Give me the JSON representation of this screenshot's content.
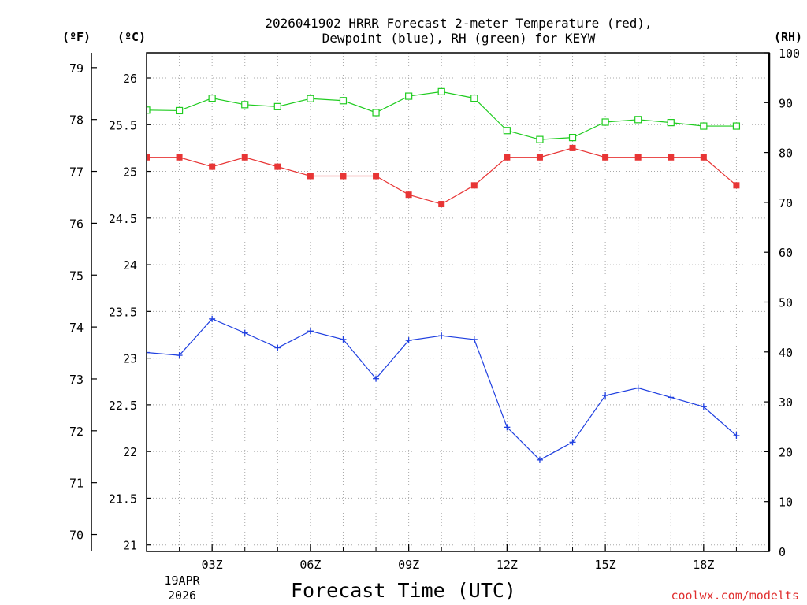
{
  "chart_data": {
    "type": "line",
    "title_line1": "2026041902 HRRR Forecast 2-meter Temperature (red),",
    "title_line2": "Dewpoint (blue), RH (green) for KEYW",
    "xlabel": "Forecast Time (UTC)",
    "credit": "coolwx.com/modelts",
    "unit_f": "(ºF)",
    "unit_c": "(ºC)",
    "unit_rh": "(RH)",
    "x_hours": [
      1,
      2,
      3,
      4,
      5,
      6,
      7,
      8,
      9,
      10,
      11,
      12,
      13,
      14,
      15,
      16,
      17,
      18,
      19,
      20
    ],
    "x_range": [
      1,
      20
    ],
    "x_ticks": [
      {
        "hour": 3,
        "label": "03Z"
      },
      {
        "hour": 6,
        "label": "06Z"
      },
      {
        "hour": 9,
        "label": "09Z"
      },
      {
        "hour": 12,
        "label": "12Z"
      },
      {
        "hour": 15,
        "label": "15Z"
      },
      {
        "hour": 18,
        "label": "18Z"
      }
    ],
    "date_label_1": "19APR",
    "date_label_2": "2026",
    "c_axis": {
      "range": [
        20.93,
        26.27
      ],
      "ticks": [
        "21",
        "21.5",
        "22",
        "22.5",
        "23",
        "23.5",
        "24",
        "24.5",
        "25",
        "25.5",
        "26"
      ]
    },
    "f_axis": {
      "ticks": [
        "70",
        "71",
        "72",
        "73",
        "74",
        "75",
        "76",
        "77",
        "78",
        "79"
      ]
    },
    "rh_axis": {
      "range": [
        0,
        100
      ],
      "ticks": [
        "0",
        "10",
        "20",
        "30",
        "40",
        "50",
        "60",
        "70",
        "80",
        "90",
        "100"
      ]
    },
    "series": [
      {
        "name": "Temperature",
        "axis": "C",
        "color": "#e83535",
        "marker": "filled-square",
        "values": [
          25.15,
          25.15,
          25.05,
          25.15,
          25.05,
          24.95,
          24.95,
          24.95,
          24.75,
          24.65,
          24.85,
          25.15,
          25.15,
          25.25,
          25.15,
          25.15,
          25.15,
          25.15,
          24.85
        ]
      },
      {
        "name": "Dewpoint",
        "axis": "C",
        "color": "#2040e0",
        "marker": "plus",
        "values": [
          23.06,
          23.03,
          23.42,
          23.27,
          23.11,
          23.29,
          23.2,
          22.78,
          23.19,
          23.24,
          23.2,
          22.26,
          21.91,
          22.1,
          22.6,
          22.68,
          22.58,
          22.48,
          22.17
        ]
      },
      {
        "name": "RH",
        "axis": "RH",
        "color": "#20cc20",
        "marker": "open-square",
        "values": [
          88.5,
          88.4,
          90.9,
          89.6,
          89.2,
          90.8,
          90.4,
          88.0,
          91.3,
          92.2,
          90.9,
          84.4,
          82.6,
          83.0,
          86.1,
          86.6,
          86.0,
          85.3,
          85.3
        ]
      }
    ]
  }
}
